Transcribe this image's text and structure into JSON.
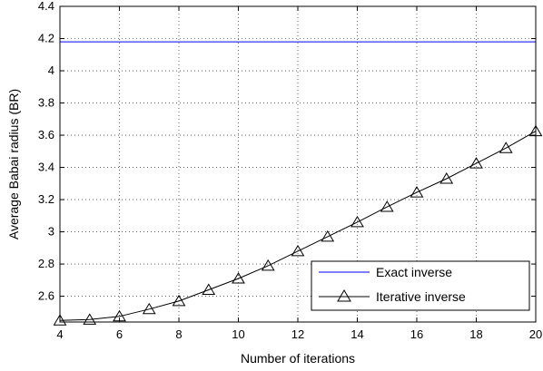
{
  "chart_data": {
    "type": "line",
    "xlabel": "Number of iterations",
    "ylabel": "Average Babai radius (BR)",
    "xlim": [
      4,
      20
    ],
    "ylim": [
      2.44,
      4.4
    ],
    "x_ticks": [
      4,
      6,
      8,
      10,
      12,
      14,
      16,
      18,
      20
    ],
    "y_ticks": [
      2.6,
      2.8,
      3,
      3.2,
      3.4,
      3.6,
      3.8,
      4,
      4.2,
      4.4
    ],
    "grid": true,
    "legend_position": "bottom-right",
    "series": [
      {
        "name": "Exact inverse",
        "color": "#0000ff",
        "marker": "none",
        "x": [
          4,
          20
        ],
        "y": [
          4.18,
          4.18
        ]
      },
      {
        "name": "Iterative inverse",
        "color": "#000000",
        "marker": "triangle",
        "x": [
          4,
          5,
          6,
          7,
          8,
          9,
          10,
          11,
          12,
          13,
          14,
          15,
          16,
          17,
          18,
          19,
          20
        ],
        "y": [
          2.45,
          2.455,
          2.475,
          2.52,
          2.57,
          2.64,
          2.71,
          2.79,
          2.88,
          2.97,
          3.06,
          3.155,
          3.245,
          3.33,
          3.425,
          3.52,
          3.625
        ]
      }
    ]
  }
}
